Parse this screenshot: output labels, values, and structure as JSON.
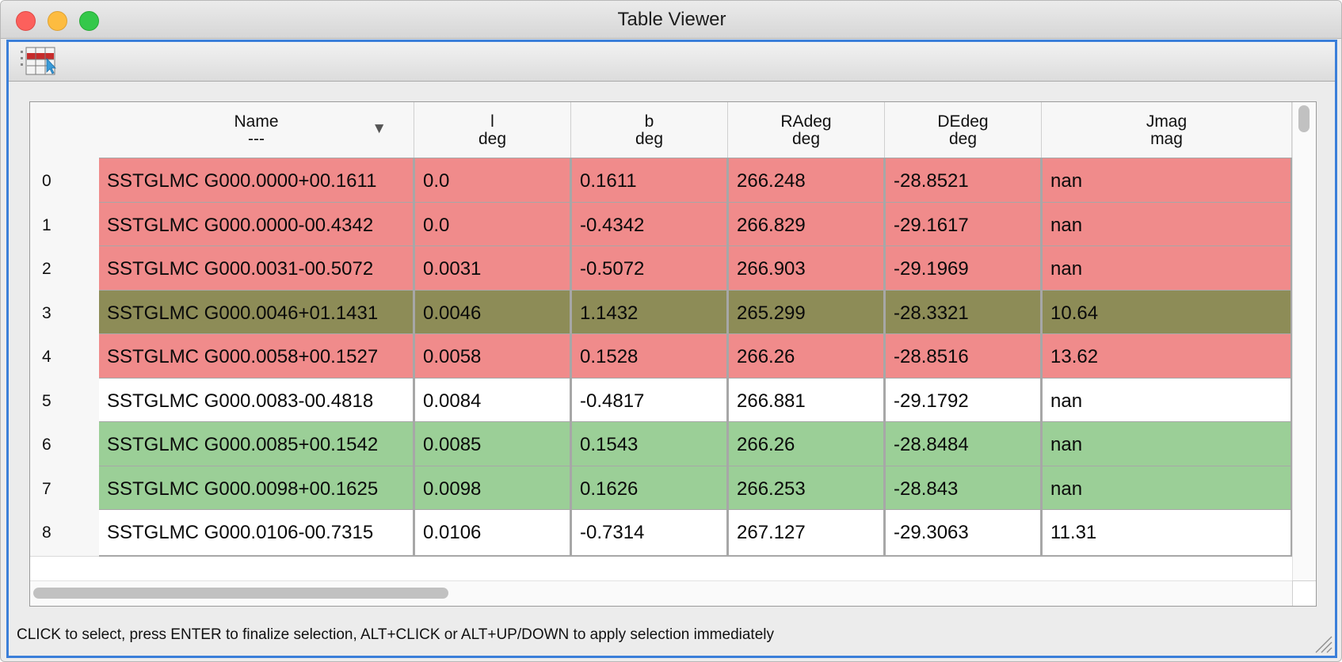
{
  "window": {
    "title": "Table Viewer"
  },
  "toolbar": {
    "table_button_icon": "table-select-icon"
  },
  "colors": {
    "red_row": "#f08b8b",
    "olive_row": "#8d8c57",
    "green_row": "#9bcf97",
    "white_row": "#ffffff",
    "frame_accent": "#3b7fd9"
  },
  "table": {
    "columns": [
      {
        "name": "Name",
        "unit": "---"
      },
      {
        "name": "l",
        "unit": "deg"
      },
      {
        "name": "b",
        "unit": "deg"
      },
      {
        "name": "RAdeg",
        "unit": "deg"
      },
      {
        "name": "DEdeg",
        "unit": "deg"
      },
      {
        "name": "Jmag",
        "unit": "mag"
      }
    ],
    "sort_icon": "sort-descending-icon",
    "rows": [
      {
        "index": "0",
        "color": "red",
        "cells": [
          "SSTGLMC G000.0000+00.1611",
          "0.0",
          "0.1611",
          "266.248",
          "-28.8521",
          "nan"
        ]
      },
      {
        "index": "1",
        "color": "red",
        "cells": [
          "SSTGLMC G000.0000-00.4342",
          "0.0",
          "-0.4342",
          "266.829",
          "-29.1617",
          "nan"
        ]
      },
      {
        "index": "2",
        "color": "red",
        "cells": [
          "SSTGLMC G000.0031-00.5072",
          "0.0031",
          "-0.5072",
          "266.903",
          "-29.1969",
          "nan"
        ]
      },
      {
        "index": "3",
        "color": "olive",
        "cells": [
          "SSTGLMC G000.0046+01.1431",
          "0.0046",
          "1.1432",
          "265.299",
          "-28.3321",
          "10.64"
        ]
      },
      {
        "index": "4",
        "color": "red",
        "cells": [
          "SSTGLMC G000.0058+00.1527",
          "0.0058",
          "0.1528",
          "266.26",
          "-28.8516",
          "13.62"
        ]
      },
      {
        "index": "5",
        "color": "white",
        "cells": [
          "SSTGLMC G000.0083-00.4818",
          "0.0084",
          "-0.4817",
          "266.881",
          "-29.1792",
          "nan"
        ]
      },
      {
        "index": "6",
        "color": "green",
        "cells": [
          "SSTGLMC G000.0085+00.1542",
          "0.0085",
          "0.1543",
          "266.26",
          "-28.8484",
          "nan"
        ]
      },
      {
        "index": "7",
        "color": "green",
        "cells": [
          "SSTGLMC G000.0098+00.1625",
          "0.0098",
          "0.1626",
          "266.253",
          "-28.843",
          "nan"
        ]
      },
      {
        "index": "8",
        "color": "white",
        "cells": [
          "SSTGLMC G000.0106-00.7315",
          "0.0106",
          "-0.7314",
          "267.127",
          "-29.3063",
          "11.31"
        ]
      }
    ]
  },
  "status": {
    "text": "CLICK to select, press ENTER to finalize selection, ALT+CLICK or ALT+UP/DOWN to apply selection immediately"
  }
}
